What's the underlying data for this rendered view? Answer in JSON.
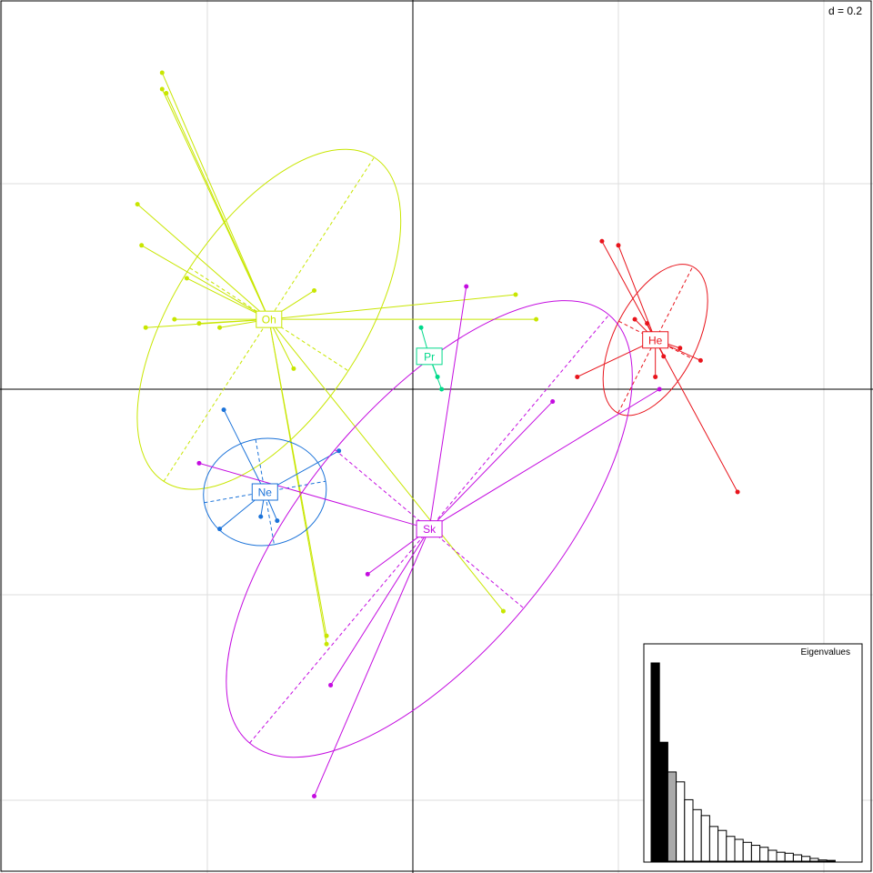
{
  "chart_data": {
    "type": "scatter",
    "subtype": "class-ellipse-ordination",
    "scale_label": "d = 0.2",
    "grid": true,
    "x_range": [
      -1.0,
      1.1
    ],
    "y_range": [
      -1.1,
      1.0
    ],
    "grid_step": 0.5,
    "groups": [
      {
        "label": "Oh",
        "color": "#c8e600",
        "centroid": [
          -0.35,
          0.17
        ],
        "ellipse": {
          "cx": -0.35,
          "cy": 0.17,
          "rx": 0.47,
          "ry": 0.23,
          "angle_deg": -57
        },
        "points": [
          [
            -0.61,
            0.77
          ],
          [
            -0.61,
            0.73
          ],
          [
            -0.6,
            0.72
          ],
          [
            -0.67,
            0.45
          ],
          [
            -0.66,
            0.35
          ],
          [
            -0.55,
            0.27
          ],
          [
            -0.58,
            0.17
          ],
          [
            -0.52,
            0.16
          ],
          [
            -0.65,
            0.15
          ],
          [
            -0.47,
            0.15
          ],
          [
            -0.24,
            0.24
          ],
          [
            -0.29,
            0.05
          ],
          [
            0.25,
            0.23
          ],
          [
            0.3,
            0.17
          ],
          [
            -0.21,
            -0.6
          ],
          [
            -0.21,
            -0.62
          ],
          [
            0.22,
            -0.54
          ]
        ]
      },
      {
        "label": "Pr",
        "color": "#00d98a",
        "centroid": [
          0.04,
          0.08
        ],
        "ellipse": {
          "cx": 0.04,
          "cy": 0.08,
          "rx": 0.0,
          "ry": 0.0,
          "angle_deg": 0
        },
        "points": [
          [
            0.02,
            0.15
          ],
          [
            0.06,
            0.03
          ],
          [
            0.07,
            0.0
          ]
        ]
      },
      {
        "label": "He",
        "color": "#e8141c",
        "centroid": [
          0.59,
          0.12
        ],
        "ellipse": {
          "cx": 0.59,
          "cy": 0.12,
          "rx": 0.2,
          "ry": 0.1,
          "angle_deg": -63
        },
        "points": [
          [
            0.46,
            0.36
          ],
          [
            0.5,
            0.35
          ],
          [
            0.54,
            0.17
          ],
          [
            0.57,
            0.16
          ],
          [
            0.61,
            0.08
          ],
          [
            0.65,
            0.1
          ],
          [
            0.7,
            0.07
          ],
          [
            0.4,
            0.03
          ],
          [
            0.59,
            0.03
          ],
          [
            0.79,
            -0.25
          ]
        ]
      },
      {
        "label": "Ne",
        "color": "#1a72d9",
        "centroid": [
          -0.36,
          -0.25
        ],
        "ellipse": {
          "cx": -0.36,
          "cy": -0.25,
          "rx": 0.15,
          "ry": 0.13,
          "angle_deg": -10
        },
        "points": [
          [
            -0.46,
            -0.05
          ],
          [
            -0.18,
            -0.15
          ],
          [
            -0.47,
            -0.34
          ],
          [
            -0.37,
            -0.31
          ],
          [
            -0.33,
            -0.32
          ]
        ]
      },
      {
        "label": "Sk",
        "color": "#c40ce0",
        "centroid": [
          0.04,
          -0.34
        ],
        "ellipse": {
          "cx": 0.04,
          "cy": -0.34,
          "rx": 0.68,
          "ry": 0.3,
          "angle_deg": -50
        },
        "points": [
          [
            0.13,
            0.25
          ],
          [
            0.34,
            -0.03
          ],
          [
            0.6,
            0.0
          ],
          [
            -0.52,
            -0.18
          ],
          [
            -0.11,
            -0.45
          ],
          [
            -0.2,
            -0.72
          ],
          [
            -0.24,
            -0.99
          ]
        ]
      }
    ],
    "eigenvalues": {
      "title": "Eigenvalues",
      "highlighted": 2,
      "values": [
        1.0,
        0.6,
        0.45,
        0.4,
        0.31,
        0.26,
        0.23,
        0.175,
        0.155,
        0.125,
        0.11,
        0.095,
        0.08,
        0.07,
        0.055,
        0.045,
        0.04,
        0.032,
        0.024,
        0.014,
        0.006,
        0.004
      ]
    }
  }
}
